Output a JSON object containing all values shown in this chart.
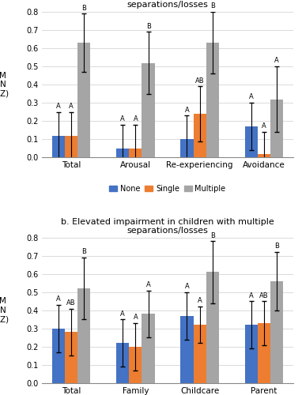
{
  "panel_a": {
    "title": "a. Elevated trauma symptoms in children with multiple\nseparations/losses",
    "categories": [
      "Total",
      "Arousal",
      "Re-experiencing",
      "Avoidance"
    ],
    "none_values": [
      0.12,
      0.05,
      0.1,
      0.17
    ],
    "single_values": [
      0.12,
      0.05,
      0.24,
      0.02
    ],
    "multiple_values": [
      0.63,
      0.52,
      0.63,
      0.32
    ],
    "none_errors": [
      0.13,
      0.13,
      0.13,
      0.13
    ],
    "single_errors": [
      0.13,
      0.13,
      0.15,
      0.12
    ],
    "multiple_errors": [
      0.16,
      0.17,
      0.17,
      0.18
    ],
    "none_labels": [
      "A",
      "A",
      "A",
      "A"
    ],
    "single_labels": [
      "A",
      "A",
      "AB",
      "A"
    ],
    "multiple_labels": [
      "B",
      "B",
      "B",
      "A"
    ]
  },
  "panel_b": {
    "title": "b. Elevated impairment in children with multiple\nseparations/losses",
    "categories": [
      "Total",
      "Family",
      "Childcare",
      "Parent"
    ],
    "none_values": [
      0.3,
      0.22,
      0.37,
      0.32
    ],
    "single_values": [
      0.28,
      0.2,
      0.32,
      0.33
    ],
    "multiple_values": [
      0.52,
      0.38,
      0.61,
      0.56
    ],
    "none_errors": [
      0.13,
      0.13,
      0.13,
      0.13
    ],
    "single_errors": [
      0.13,
      0.13,
      0.1,
      0.12
    ],
    "multiple_errors": [
      0.17,
      0.13,
      0.17,
      0.16
    ],
    "none_labels": [
      "A",
      "A",
      "A",
      "A"
    ],
    "single_labels": [
      "AB",
      "A",
      "A",
      "AB"
    ],
    "multiple_labels": [
      "B",
      "A",
      "B",
      "B"
    ]
  },
  "colors": {
    "none": "#4472C4",
    "single": "#ED7D31",
    "multiple": "#A5A5A5"
  },
  "ylim": [
    0.0,
    0.8
  ],
  "yticks": [
    0.0,
    0.1,
    0.2,
    0.3,
    0.4,
    0.5,
    0.6,
    0.7,
    0.8
  ]
}
